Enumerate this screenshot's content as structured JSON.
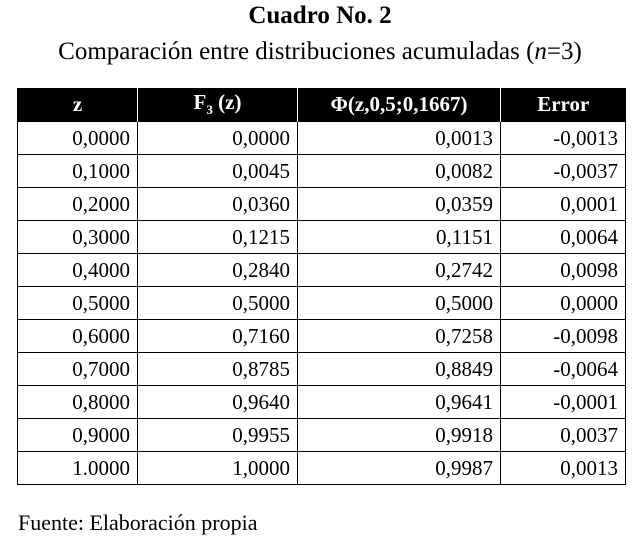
{
  "title": "Cuadro No. 2",
  "subtitle": [
    "Comparación entre distribuciones acumuladas (",
    "n",
    "=3)"
  ],
  "table": {
    "header": [
      [
        "z"
      ],
      [
        "F",
        "3",
        " (z)"
      ],
      [
        "Φ(z,0,5;0,1667)"
      ],
      [
        "Error"
      ]
    ],
    "rows": [
      [
        "0,0000",
        "0,0000",
        "0,0013",
        "-0,0013"
      ],
      [
        "0,1000",
        "0,0045",
        "0,0082",
        "-0,0037"
      ],
      [
        "0,2000",
        "0,0360",
        "0,0359",
        "0,0001"
      ],
      [
        "0,3000",
        "0,1215",
        "0,1151",
        "0,0064"
      ],
      [
        "0,4000",
        "0,2840",
        "0,2742",
        "0,0098"
      ],
      [
        "0,5000",
        "0,5000",
        "0,5000",
        "0,0000"
      ],
      [
        "0,6000",
        "0,7160",
        "0,7258",
        "-0,0098"
      ],
      [
        "0,7000",
        "0,8785",
        "0,8849",
        "-0,0064"
      ],
      [
        "0,8000",
        "0,9640",
        "0,9641",
        "-0,0001"
      ],
      [
        "0,9000",
        "0,9955",
        "0,9918",
        "0,0037"
      ],
      [
        "1.0000",
        "1,0000",
        "0,9987",
        "0,0013"
      ]
    ]
  },
  "footer": "Fuente: Elaboración propia"
}
